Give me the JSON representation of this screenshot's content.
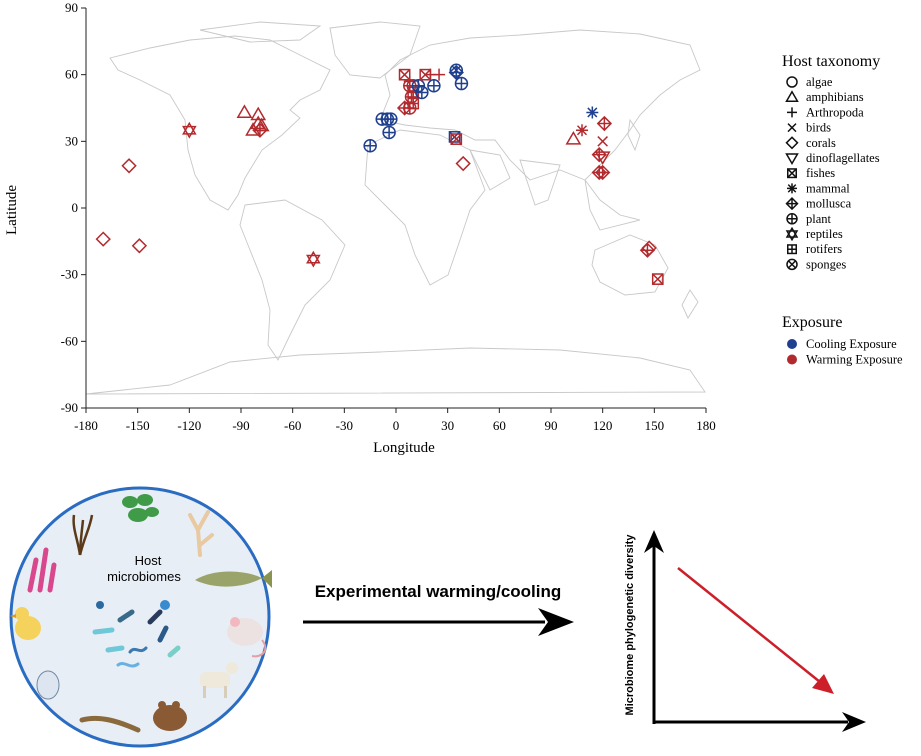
{
  "chart_data": {
    "type": "scatter",
    "title": "",
    "xlabel": "Longitude",
    "ylabel": "Latitude",
    "xlim": [
      -180,
      180
    ],
    "ylim": [
      -90,
      90
    ],
    "x_ticks": [
      "-180",
      "-150",
      "-120",
      "-90",
      "-60",
      "-30",
      "0",
      "30",
      "60",
      "90",
      "120",
      "150",
      "180"
    ],
    "y_ticks": [
      "90",
      "60",
      "30",
      "0",
      "-30",
      "-60",
      "-90"
    ],
    "grid": false,
    "legend_position": "right",
    "legends": {
      "taxonomy_title": "Host taxonomy",
      "taxonomy": [
        {
          "label": "algae",
          "shape": "circle"
        },
        {
          "label": "amphibians",
          "shape": "triangle"
        },
        {
          "label": "Arthropoda",
          "shape": "plus"
        },
        {
          "label": "birds",
          "shape": "cross"
        },
        {
          "label": "corals",
          "shape": "diamond"
        },
        {
          "label": "dinoflagellates",
          "shape": "triangle-down"
        },
        {
          "label": "fishes",
          "shape": "square-x"
        },
        {
          "label": "mammal",
          "shape": "asterisk"
        },
        {
          "label": "mollusca",
          "shape": "diamond-plus"
        },
        {
          "label": "plant",
          "shape": "circle-plus"
        },
        {
          "label": "reptiles",
          "shape": "star-david"
        },
        {
          "label": "rotifers",
          "shape": "square-plus"
        },
        {
          "label": "sponges",
          "shape": "circle-x"
        }
      ],
      "exposure_title": "Exposure",
      "exposure": [
        {
          "label": "Cooling Exposure",
          "color": "#1f3f8f"
        },
        {
          "label": "Warming Exposure",
          "color": "#b22a2e"
        }
      ]
    },
    "colors": {
      "cooling": "#1f3f8f",
      "warming": "#b22a2e"
    },
    "points": [
      {
        "x": -80,
        "y": 38,
        "shape": "triangle",
        "exposure": "warming"
      },
      {
        "x": -78,
        "y": 37,
        "shape": "triangle",
        "exposure": "warming"
      },
      {
        "x": -88,
        "y": 43,
        "shape": "triangle",
        "exposure": "warming"
      },
      {
        "x": -80,
        "y": 42,
        "shape": "triangle",
        "exposure": "warming"
      },
      {
        "x": -83,
        "y": 35,
        "shape": "triangle",
        "exposure": "warming"
      },
      {
        "x": -79,
        "y": 35,
        "shape": "diamond-plus",
        "exposure": "warming"
      },
      {
        "x": -120,
        "y": 35,
        "shape": "star-david",
        "exposure": "warming"
      },
      {
        "x": -48,
        "y": -23,
        "shape": "star-david",
        "exposure": "warming"
      },
      {
        "x": -155,
        "y": 19,
        "shape": "diamond",
        "exposure": "warming"
      },
      {
        "x": -170,
        "y": -14,
        "shape": "diamond",
        "exposure": "warming"
      },
      {
        "x": -149,
        "y": -17,
        "shape": "diamond",
        "exposure": "warming"
      },
      {
        "x": -15,
        "y": 28,
        "shape": "circle-plus",
        "exposure": "cooling"
      },
      {
        "x": -8,
        "y": 40,
        "shape": "circle-plus",
        "exposure": "cooling"
      },
      {
        "x": -5,
        "y": 40,
        "shape": "circle-plus",
        "exposure": "cooling"
      },
      {
        "x": -3,
        "y": 40,
        "shape": "circle-plus",
        "exposure": "cooling"
      },
      {
        "x": -4,
        "y": 34,
        "shape": "circle-plus",
        "exposure": "cooling"
      },
      {
        "x": 5,
        "y": 60,
        "shape": "square-x",
        "exposure": "warming"
      },
      {
        "x": 8,
        "y": 57,
        "shape": "plus",
        "exposure": "warming"
      },
      {
        "x": 10,
        "y": 55,
        "shape": "circle",
        "exposure": "warming"
      },
      {
        "x": 8,
        "y": 55,
        "shape": "circle-plus",
        "exposure": "warming"
      },
      {
        "x": 10,
        "y": 52,
        "shape": "square-plus",
        "exposure": "warming"
      },
      {
        "x": 9,
        "y": 50,
        "shape": "circle-plus",
        "exposure": "warming"
      },
      {
        "x": 10,
        "y": 47,
        "shape": "square-plus",
        "exposure": "warming"
      },
      {
        "x": 8,
        "y": 45,
        "shape": "circle-plus",
        "exposure": "warming"
      },
      {
        "x": 5,
        "y": 45,
        "shape": "diamond-plus",
        "exposure": "warming"
      },
      {
        "x": 13,
        "y": 55,
        "shape": "circle-plus",
        "exposure": "cooling"
      },
      {
        "x": 15,
        "y": 52,
        "shape": "circle-plus",
        "exposure": "cooling"
      },
      {
        "x": 17,
        "y": 60,
        "shape": "square-x",
        "exposure": "warming"
      },
      {
        "x": 20,
        "y": 60,
        "shape": "plus",
        "exposure": "warming"
      },
      {
        "x": 25,
        "y": 60,
        "shape": "plus",
        "exposure": "warming"
      },
      {
        "x": 22,
        "y": 55,
        "shape": "circle-plus",
        "exposure": "cooling"
      },
      {
        "x": 35,
        "y": 62,
        "shape": "circle-x",
        "exposure": "cooling"
      },
      {
        "x": 35,
        "y": 61,
        "shape": "diamond-plus",
        "exposure": "cooling"
      },
      {
        "x": 38,
        "y": 56,
        "shape": "circle-plus",
        "exposure": "cooling"
      },
      {
        "x": 34,
        "y": 32,
        "shape": "square-x",
        "exposure": "cooling"
      },
      {
        "x": 35,
        "y": 31,
        "shape": "square-x",
        "exposure": "warming"
      },
      {
        "x": 39,
        "y": 20,
        "shape": "diamond",
        "exposure": "warming"
      },
      {
        "x": 114,
        "y": 43,
        "shape": "asterisk",
        "exposure": "cooling"
      },
      {
        "x": 108,
        "y": 35,
        "shape": "asterisk",
        "exposure": "warming"
      },
      {
        "x": 103,
        "y": 31,
        "shape": "triangle",
        "exposure": "warming"
      },
      {
        "x": 120,
        "y": 30,
        "shape": "cross",
        "exposure": "warming"
      },
      {
        "x": 121,
        "y": 38,
        "shape": "diamond-plus",
        "exposure": "warming"
      },
      {
        "x": 118,
        "y": 24,
        "shape": "diamond-plus",
        "exposure": "warming"
      },
      {
        "x": 120,
        "y": 23,
        "shape": "triangle-down",
        "exposure": "warming"
      },
      {
        "x": 120,
        "y": 16,
        "shape": "diamond-plus",
        "exposure": "warming"
      },
      {
        "x": 118,
        "y": 16,
        "shape": "diamond-plus",
        "exposure": "warming"
      },
      {
        "x": 146,
        "y": -19,
        "shape": "diamond-plus",
        "exposure": "warming"
      },
      {
        "x": 147,
        "y": -18,
        "shape": "diamond",
        "exposure": "warming"
      },
      {
        "x": 152,
        "y": -32,
        "shape": "square-x",
        "exposure": "warming"
      }
    ]
  },
  "illustration": {
    "circle_label_line1": "Host",
    "circle_label_line2": "microbiomes",
    "arrow_label": "Experimental warming/cooling",
    "trend_ylabel": "Microbiome phylogenetic diversity"
  }
}
